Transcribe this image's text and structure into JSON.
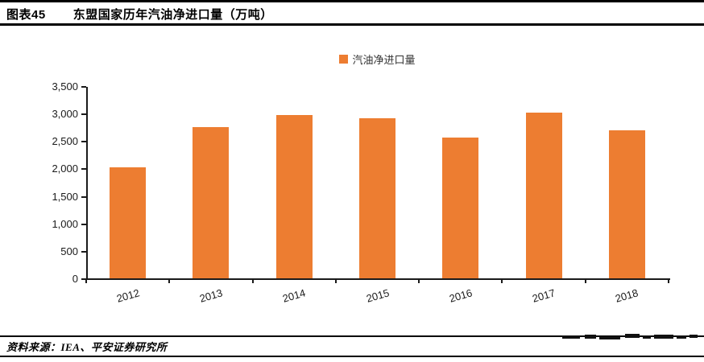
{
  "header": {
    "figure_label": "图表45",
    "title": "东盟国家历年汽油净进口量（万吨）"
  },
  "legend": {
    "label": "汽油净进口量",
    "swatch_color": "#ED7D31"
  },
  "chart_data": {
    "type": "bar",
    "title": "东盟国家历年汽油净进口量（万吨）",
    "categories": [
      "2012",
      "2013",
      "2014",
      "2015",
      "2016",
      "2017",
      "2018"
    ],
    "series": [
      {
        "name": "汽油净进口量",
        "values": [
          2020,
          2750,
          2980,
          2910,
          2570,
          3010,
          2690
        ]
      }
    ],
    "xlabel": "",
    "ylabel": "",
    "ylim": [
      0,
      3500
    ],
    "ytick_step": 500,
    "ytick_labels": [
      "3,500",
      "3,000",
      "2,500",
      "2,000",
      "1,500",
      "1,000",
      "500",
      "0"
    ],
    "bar_color": "#ED7D31",
    "axis_color": "#1a1a1a",
    "grid": false,
    "legend_position": "top-center"
  },
  "footer": {
    "source": "资料来源：IEA、平安证券研究所"
  }
}
